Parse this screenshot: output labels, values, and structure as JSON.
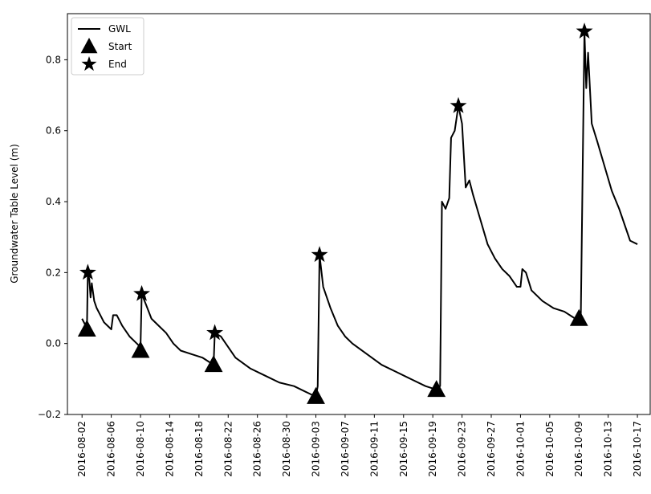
{
  "chart_data": {
    "type": "line",
    "title": "",
    "xlabel": "",
    "ylabel": "Groundwater Table Level (m)",
    "x_type": "date",
    "xlim": [
      "2016-07-31T00:00",
      "2016-10-18T18:00"
    ],
    "ylim": [
      -0.2,
      0.93
    ],
    "x_ticks": [
      "2016-08-02",
      "2016-08-06",
      "2016-08-10",
      "2016-08-14",
      "2016-08-18",
      "2016-08-22",
      "2016-08-26",
      "2016-08-30",
      "2016-09-03",
      "2016-09-07",
      "2016-09-11",
      "2016-09-15",
      "2016-09-19",
      "2016-09-23",
      "2016-09-27",
      "2016-10-01",
      "2016-10-05",
      "2016-10-09",
      "2016-10-13",
      "2016-10-17"
    ],
    "y_ticks": [
      -0.2,
      0.0,
      0.2,
      0.4,
      0.6,
      0.8
    ],
    "y_tick_labels": [
      "−0.2",
      "0.0",
      "0.2",
      "0.4",
      "0.6",
      "0.8"
    ],
    "grid": false,
    "legend": {
      "position": "top-left",
      "entries": [
        "GWL",
        "Start",
        "End"
      ]
    },
    "series": [
      {
        "name": "GWL",
        "kind": "line",
        "color": "#000000",
        "points": [
          [
            "2016-08-02T00:00",
            0.07
          ],
          [
            "2016-08-02T12:00",
            0.05
          ],
          [
            "2016-08-02T16:00",
            0.04
          ],
          [
            "2016-08-02T19:00",
            0.2
          ],
          [
            "2016-08-03T00:00",
            0.18
          ],
          [
            "2016-08-03T04:00",
            0.13
          ],
          [
            "2016-08-03T08:00",
            0.17
          ],
          [
            "2016-08-03T16:00",
            0.12
          ],
          [
            "2016-08-04T00:00",
            0.1
          ],
          [
            "2016-08-04T12:00",
            0.08
          ],
          [
            "2016-08-05T00:00",
            0.06
          ],
          [
            "2016-08-05T12:00",
            0.05
          ],
          [
            "2016-08-06T00:00",
            0.04
          ],
          [
            "2016-08-06T06:00",
            0.08
          ],
          [
            "2016-08-06T18:00",
            0.08
          ],
          [
            "2016-08-07T12:00",
            0.05
          ],
          [
            "2016-08-08T12:00",
            0.02
          ],
          [
            "2016-08-09T12:00",
            0.0
          ],
          [
            "2016-08-10T00:00",
            -0.01
          ],
          [
            "2016-08-10T04:00",
            0.14
          ],
          [
            "2016-08-10T18:00",
            0.11
          ],
          [
            "2016-08-11T12:00",
            0.07
          ],
          [
            "2016-08-12T12:00",
            0.05
          ],
          [
            "2016-08-13T12:00",
            0.03
          ],
          [
            "2016-08-14T12:00",
            0.0
          ],
          [
            "2016-08-15T12:00",
            -0.02
          ],
          [
            "2016-08-17T00:00",
            -0.03
          ],
          [
            "2016-08-18T12:00",
            -0.04
          ],
          [
            "2016-08-20T00:00",
            -0.06
          ],
          [
            "2016-08-20T04:00",
            0.03
          ],
          [
            "2016-08-21T00:00",
            0.02
          ],
          [
            "2016-08-22T00:00",
            -0.01
          ],
          [
            "2016-08-23T00:00",
            -0.04
          ],
          [
            "2016-08-25T00:00",
            -0.07
          ],
          [
            "2016-08-27T00:00",
            -0.09
          ],
          [
            "2016-08-29T00:00",
            -0.11
          ],
          [
            "2016-08-31T00:00",
            -0.12
          ],
          [
            "2016-09-02T00:00",
            -0.14
          ],
          [
            "2016-09-03T00:00",
            -0.15
          ],
          [
            "2016-09-03T06:00",
            -0.12
          ],
          [
            "2016-09-03T12:00",
            0.25
          ],
          [
            "2016-09-04T00:00",
            0.16
          ],
          [
            "2016-09-04T12:00",
            0.13
          ],
          [
            "2016-09-05T00:00",
            0.1
          ],
          [
            "2016-09-06T00:00",
            0.05
          ],
          [
            "2016-09-07T00:00",
            0.02
          ],
          [
            "2016-09-08T00:00",
            0.0
          ],
          [
            "2016-09-10T00:00",
            -0.03
          ],
          [
            "2016-09-12T00:00",
            -0.06
          ],
          [
            "2016-09-14T00:00",
            -0.08
          ],
          [
            "2016-09-16T00:00",
            -0.1
          ],
          [
            "2016-09-18T00:00",
            -0.12
          ],
          [
            "2016-09-19T12:00",
            -0.13
          ],
          [
            "2016-09-20T00:00",
            -0.12
          ],
          [
            "2016-09-20T06:00",
            0.4
          ],
          [
            "2016-09-20T18:00",
            0.38
          ],
          [
            "2016-09-21T06:00",
            0.41
          ],
          [
            "2016-09-21T12:00",
            0.58
          ],
          [
            "2016-09-22T00:00",
            0.6
          ],
          [
            "2016-09-22T12:00",
            0.67
          ],
          [
            "2016-09-23T00:00",
            0.62
          ],
          [
            "2016-09-23T12:00",
            0.44
          ],
          [
            "2016-09-24T00:00",
            0.46
          ],
          [
            "2016-09-24T12:00",
            0.42
          ],
          [
            "2016-09-25T12:00",
            0.35
          ],
          [
            "2016-09-26T12:00",
            0.28
          ],
          [
            "2016-09-27T12:00",
            0.24
          ],
          [
            "2016-09-28T12:00",
            0.21
          ],
          [
            "2016-09-29T12:00",
            0.19
          ],
          [
            "2016-09-30T12:00",
            0.16
          ],
          [
            "2016-10-01T00:00",
            0.16
          ],
          [
            "2016-10-01T06:00",
            0.21
          ],
          [
            "2016-10-01T18:00",
            0.2
          ],
          [
            "2016-10-02T12:00",
            0.15
          ],
          [
            "2016-10-04T00:00",
            0.12
          ],
          [
            "2016-10-05T12:00",
            0.1
          ],
          [
            "2016-10-07T00:00",
            0.09
          ],
          [
            "2016-10-08T12:00",
            0.07
          ],
          [
            "2016-10-09T06:00",
            0.07
          ],
          [
            "2016-10-09T18:00",
            0.88
          ],
          [
            "2016-10-10T00:00",
            0.72
          ],
          [
            "2016-10-10T06:00",
            0.82
          ],
          [
            "2016-10-10T18:00",
            0.62
          ],
          [
            "2016-10-11T12:00",
            0.57
          ],
          [
            "2016-10-12T12:00",
            0.5
          ],
          [
            "2016-10-13T12:00",
            0.43
          ],
          [
            "2016-10-14T12:00",
            0.38
          ],
          [
            "2016-10-15T12:00",
            0.32
          ],
          [
            "2016-10-16T00:00",
            0.29
          ],
          [
            "2016-10-17T00:00",
            0.28
          ]
        ]
      },
      {
        "name": "Start",
        "kind": "marker",
        "marker": "triangle",
        "color": "#000000",
        "points": [
          [
            "2016-08-02T16:00",
            0.04
          ],
          [
            "2016-08-10T00:00",
            -0.02
          ],
          [
            "2016-08-20T00:00",
            -0.06
          ],
          [
            "2016-09-03T00:00",
            -0.15
          ],
          [
            "2016-09-19T12:00",
            -0.13
          ],
          [
            "2016-10-09T00:00",
            0.07
          ]
        ]
      },
      {
        "name": "End",
        "kind": "marker",
        "marker": "star",
        "color": "#000000",
        "points": [
          [
            "2016-08-02T19:00",
            0.2
          ],
          [
            "2016-08-10T04:00",
            0.14
          ],
          [
            "2016-08-20T04:00",
            0.03
          ],
          [
            "2016-09-03T12:00",
            0.25
          ],
          [
            "2016-09-22T12:00",
            0.67
          ],
          [
            "2016-10-09T18:00",
            0.88
          ]
        ]
      }
    ]
  }
}
